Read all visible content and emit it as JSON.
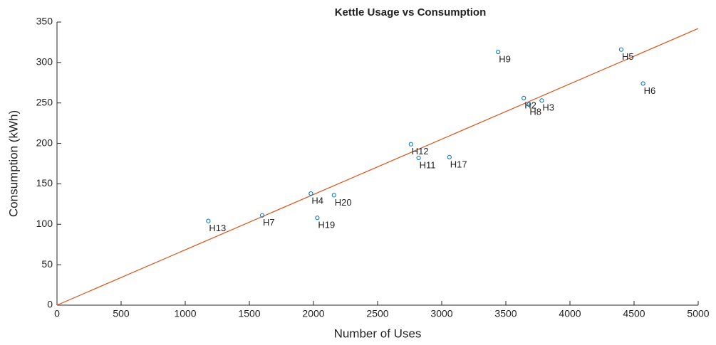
{
  "chart_data": {
    "type": "scatter",
    "title": "Kettle Usage vs Consumption",
    "x_label": "Number of Uses",
    "y_label": "Consumption (kWh)",
    "series": [
      {
        "color": "#0072bd",
        "labels": [
          "H13",
          "H7",
          "H4",
          "H19",
          "H20",
          "H12",
          "H11",
          "H17",
          "H9",
          "H2",
          "H8",
          "H3",
          "H5",
          "H6"
        ],
        "x": [
          1180,
          1600,
          1980,
          2030,
          2160,
          2760,
          2820,
          3060,
          3440,
          3640,
          3680,
          3780,
          4400,
          4570
        ],
        "values": [
          104,
          111,
          138,
          108,
          136,
          199,
          182,
          183,
          313,
          256,
          248,
          253,
          316,
          274
        ]
      }
    ],
    "fit_line": {
      "color": "#d95319",
      "x": [
        0,
        5000
      ],
      "values": [
        0,
        342
      ]
    },
    "xlim": [
      0,
      5000
    ],
    "xticks": [
      0,
      500,
      1000,
      1500,
      2000,
      2500,
      3000,
      3500,
      4000,
      4500,
      5000
    ],
    "ylim": [
      0,
      350
    ],
    "yticks": [
      0,
      50,
      100,
      150,
      200,
      250,
      300,
      350
    ]
  }
}
